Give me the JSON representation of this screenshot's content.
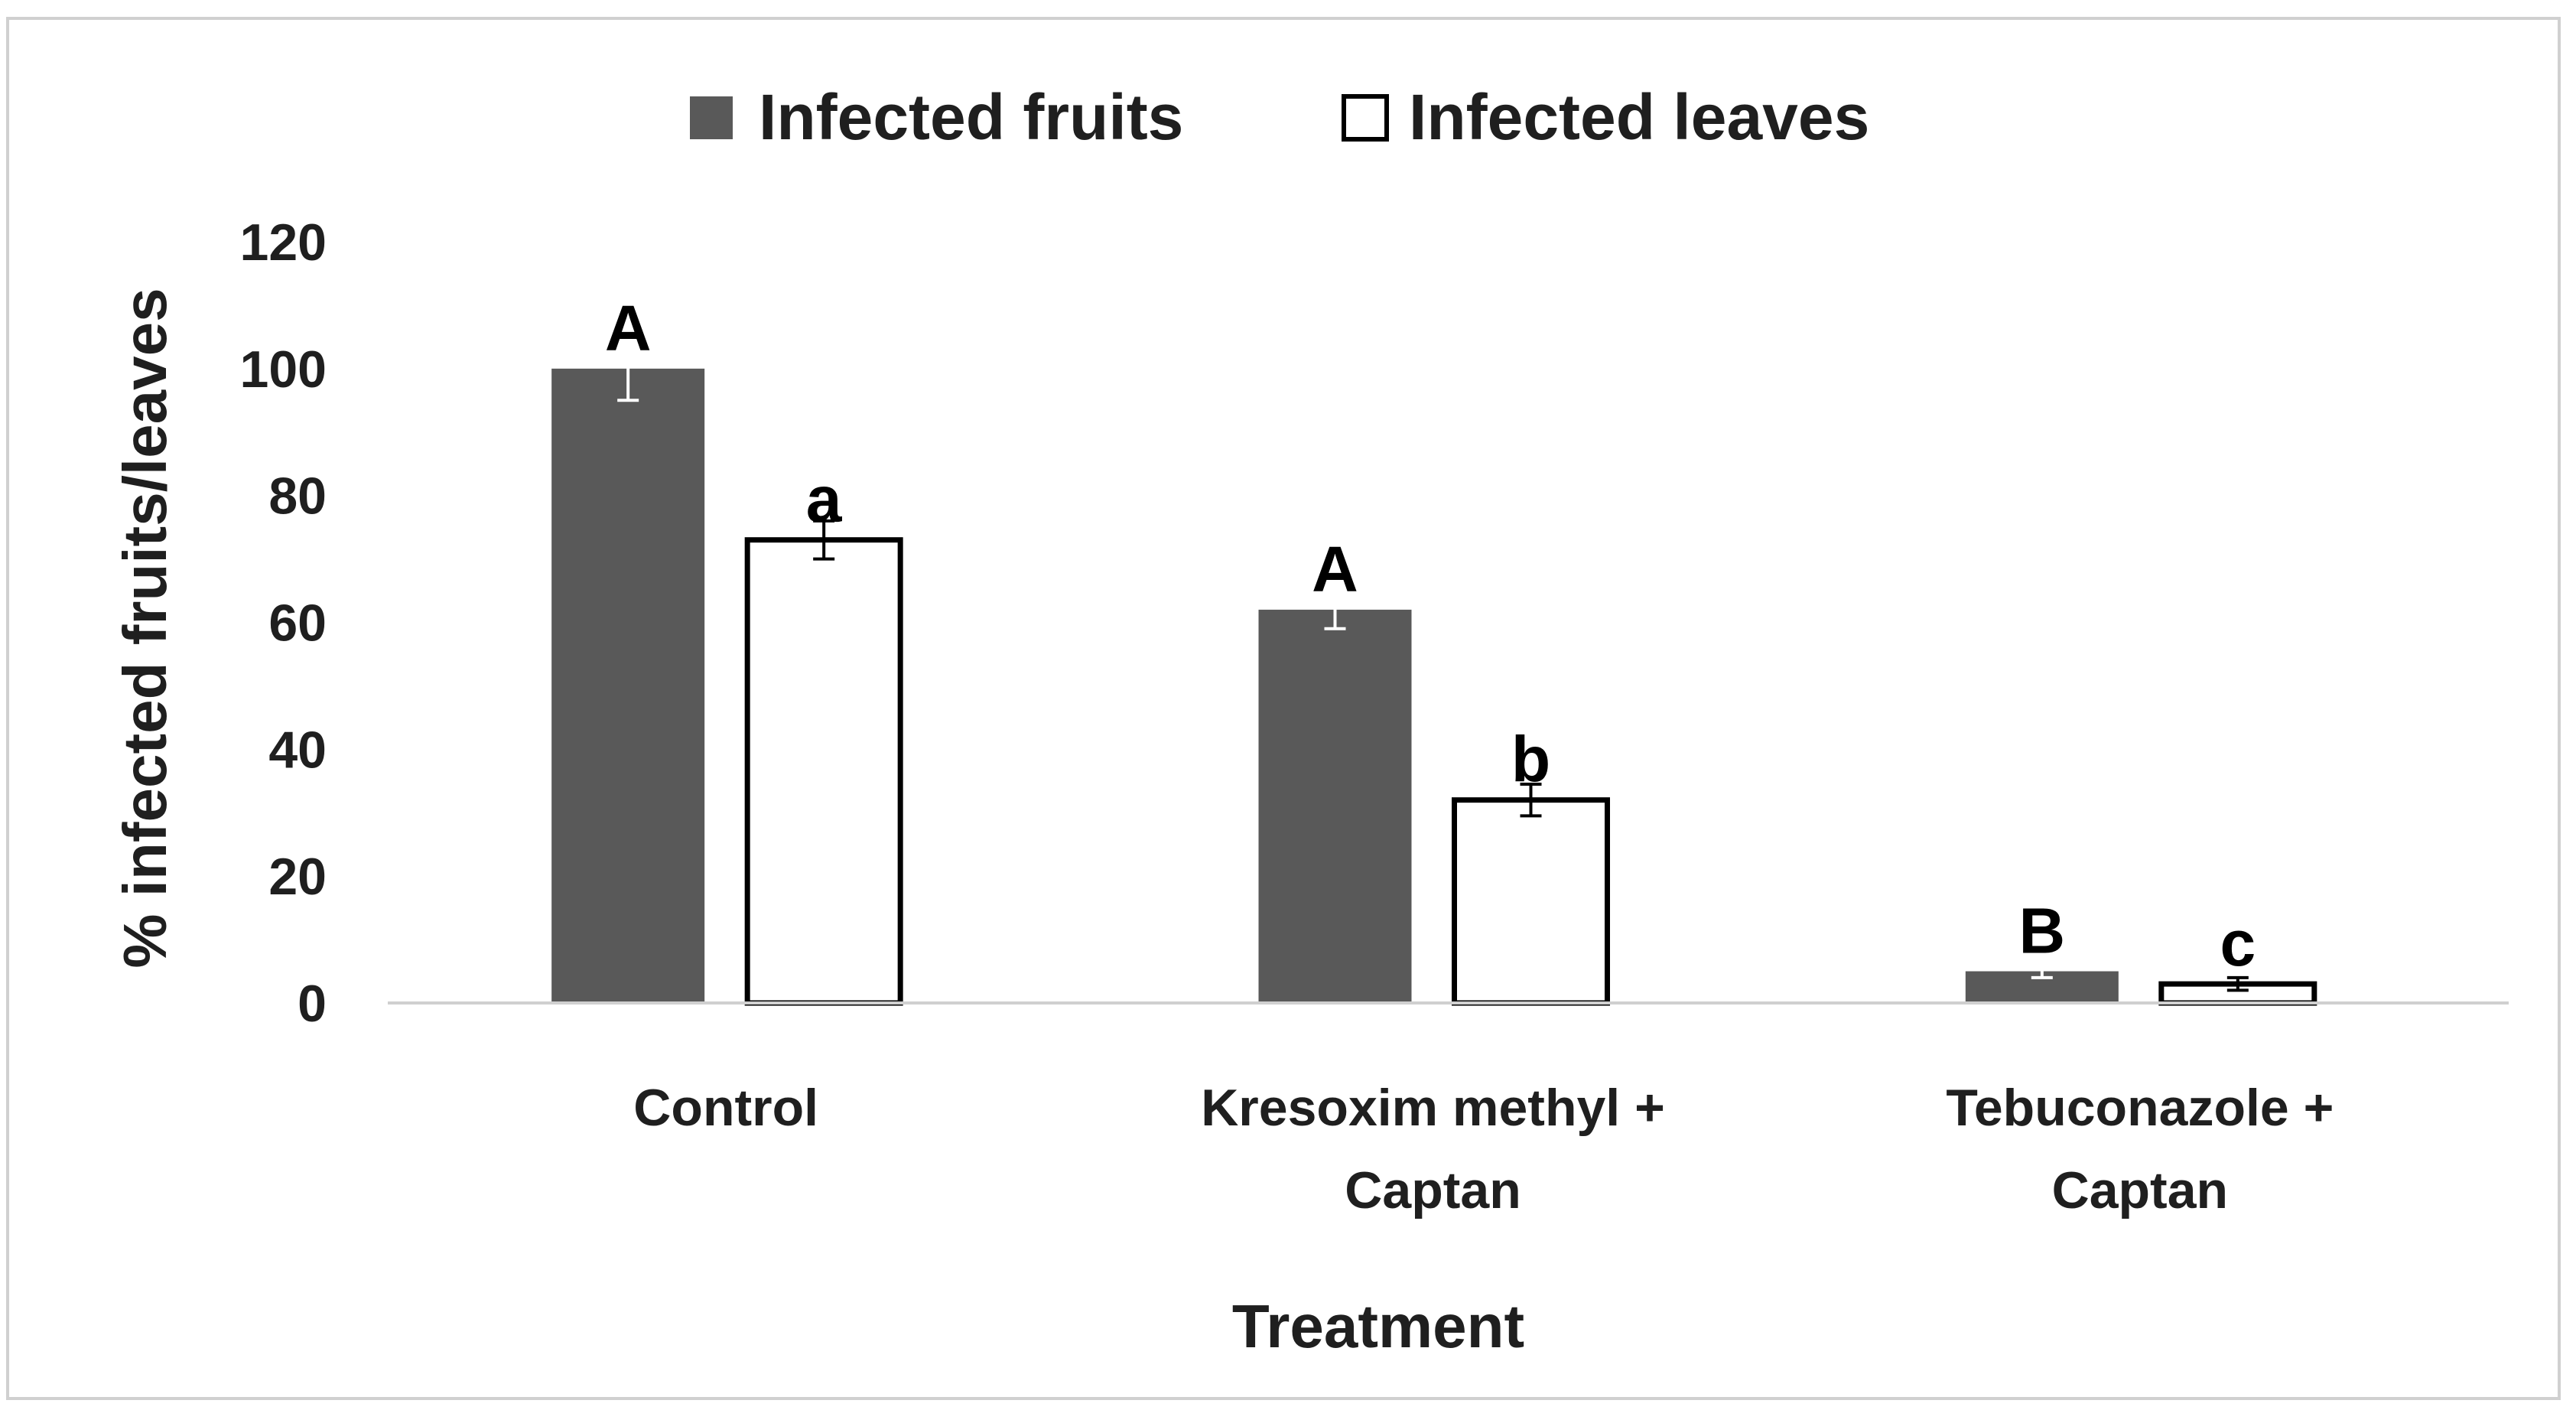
{
  "chart_data": {
    "type": "bar",
    "title": "",
    "xlabel": "Treatment",
    "ylabel": "% infected fruits/leaves",
    "ylim": [
      0,
      120
    ],
    "yticks": [
      0,
      20,
      40,
      60,
      80,
      100,
      120
    ],
    "grid": false,
    "legend_position": "top",
    "categories": [
      [
        "Control"
      ],
      [
        "Kresoxim methyl +",
        "Captan"
      ],
      [
        "Tebuconazole +",
        "Captan"
      ]
    ],
    "series": [
      {
        "name": "Infected fruits",
        "color": "#595959",
        "values": [
          100,
          62,
          5
        ],
        "errors": [
          5,
          3,
          1
        ],
        "significance": [
          "A",
          "A",
          "B"
        ]
      },
      {
        "name": "Infected leaves",
        "color": "#ffffff",
        "values": [
          73,
          32,
          3
        ],
        "errors": [
          3,
          2.5,
          1
        ],
        "significance": [
          "a",
          "b",
          "c"
        ]
      }
    ]
  }
}
